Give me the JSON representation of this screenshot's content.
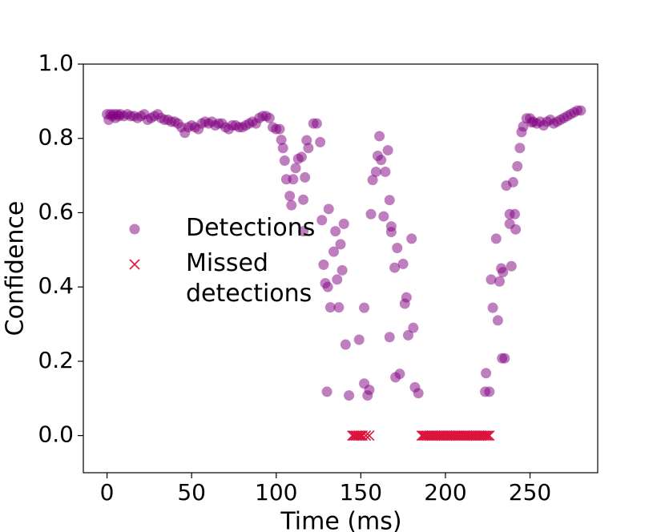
{
  "chart_data": {
    "type": "scatter",
    "xlabel": "Time (ms)",
    "ylabel": "Confidence",
    "xlim": [
      -14,
      290
    ],
    "ylim": [
      -0.1,
      1.0
    ],
    "xticks": [
      0,
      50,
      100,
      150,
      200,
      250
    ],
    "yticks": [
      {
        "value": 0,
        "label": "0.0"
      },
      0.2,
      0.4,
      0.6,
      0.8,
      {
        "value": 1,
        "label": "1.0"
      }
    ],
    "grid": false,
    "legend": "center left",
    "series": [
      {
        "name": "Detections",
        "color": "#800080",
        "marker": "o",
        "x": [
          0,
          1,
          2,
          3,
          4,
          5,
          6,
          7,
          8,
          10,
          12,
          14,
          16,
          18,
          20,
          22,
          24,
          26,
          28,
          30,
          32,
          34,
          36,
          38,
          40,
          42,
          44,
          46,
          48,
          50,
          52,
          54,
          56,
          58,
          60,
          62,
          64,
          66,
          68,
          70,
          72,
          74,
          76,
          78,
          80,
          82,
          84,
          86,
          88,
          90,
          92,
          94,
          96,
          98,
          100,
          102,
          103,
          104,
          105,
          106,
          108,
          109,
          110,
          111.5,
          113,
          115,
          116,
          116,
          117,
          118,
          119,
          122,
          124,
          126,
          127,
          128,
          129,
          130,
          130.5,
          131,
          132,
          134,
          135,
          136,
          137,
          138,
          139,
          140,
          141,
          143,
          149,
          152,
          152,
          154,
          155,
          156,
          157,
          159,
          160,
          161,
          162,
          163.5,
          164.5,
          166,
          167,
          168,
          168,
          167,
          170,
          171.5,
          170.5,
          173,
          175,
          176,
          177,
          178,
          180,
          181,
          182,
          184,
          223.5,
          226,
          224,
          227,
          228,
          230,
          231,
          232,
          233,
          233.5,
          235,
          234,
          236,
          238,
          238,
          239,
          240,
          241,
          241.5,
          242.5,
          244,
          245,
          246,
          248,
          250,
          251,
          252,
          254,
          256,
          258,
          260,
          262,
          264,
          266,
          268,
          270,
          272,
          274,
          276,
          278,
          280
        ],
        "values": [
          0.865,
          0.85,
          0.865,
          0.86,
          0.865,
          0.855,
          0.865,
          0.86,
          0.865,
          0.86,
          0.865,
          0.86,
          0.86,
          0.855,
          0.86,
          0.865,
          0.85,
          0.855,
          0.86,
          0.865,
          0.855,
          0.85,
          0.85,
          0.845,
          0.845,
          0.84,
          0.83,
          0.815,
          0.83,
          0.835,
          0.83,
          0.825,
          0.84,
          0.845,
          0.84,
          0.845,
          0.835,
          0.84,
          0.84,
          0.83,
          0.825,
          0.835,
          0.835,
          0.83,
          0.83,
          0.835,
          0.84,
          0.845,
          0.84,
          0.855,
          0.86,
          0.86,
          0.855,
          0.83,
          0.825,
          0.825,
          0.796,
          0.774,
          0.74,
          0.69,
          0.645,
          0.62,
          0.69,
          0.72,
          0.745,
          0.75,
          0.635,
          0.55,
          0.695,
          0.795,
          0.774,
          0.84,
          0.84,
          0.79,
          0.58,
          0.46,
          0.41,
          0.118,
          0.4,
          0.61,
          0.345,
          0.495,
          0.55,
          0.42,
          0.345,
          0.515,
          0.445,
          0.57,
          0.245,
          0.108,
          0.258,
          0.344,
          0.14,
          0.108,
          0.123,
          0.596,
          0.688,
          0.71,
          0.753,
          0.806,
          0.742,
          0.59,
          0.71,
          0.768,
          0.634,
          0.563,
          0.548,
          0.265,
          0.452,
          0.505,
          0.157,
          0.166,
          0.462,
          0.355,
          0.372,
          0.27,
          0.53,
          0.29,
          0.13,
          0.114,
          0.118,
          0.118,
          0.168,
          0.42,
          0.344,
          0.53,
          0.31,
          0.415,
          0.45,
          0.208,
          0.208,
          0.44,
          0.673,
          0.596,
          0.57,
          0.456,
          0.682,
          0.596,
          0.555,
          0.725,
          0.774,
          0.817,
          0.832,
          0.854,
          0.854,
          0.843,
          0.845,
          0.84,
          0.845,
          0.835,
          0.845,
          0.85,
          0.84,
          0.845,
          0.85,
          0.855,
          0.86,
          0.865,
          0.87,
          0.875,
          0.875
        ]
      },
      {
        "name": "Missed\ndetections",
        "color": "#dc143c",
        "marker": "x",
        "x": [
          145,
          146,
          147,
          148,
          149,
          150,
          151,
          153,
          155,
          186,
          187,
          188,
          189,
          190,
          191,
          192,
          193,
          194,
          195,
          196,
          197,
          198,
          199,
          200,
          201,
          202,
          203,
          204,
          205,
          206,
          207,
          208,
          209,
          210,
          211,
          212,
          213,
          214,
          215,
          216,
          217,
          218,
          219,
          220,
          221,
          222,
          223,
          224,
          225,
          226
        ],
        "values": [
          0,
          0,
          0,
          0,
          0,
          0,
          0,
          0,
          0,
          0,
          0,
          0,
          0,
          0,
          0,
          0,
          0,
          0,
          0,
          0,
          0,
          0,
          0,
          0,
          0,
          0,
          0,
          0,
          0,
          0,
          0,
          0,
          0,
          0,
          0,
          0,
          0,
          0,
          0,
          0,
          0,
          0,
          0,
          0,
          0,
          0,
          0,
          0,
          0,
          0
        ]
      }
    ]
  }
}
